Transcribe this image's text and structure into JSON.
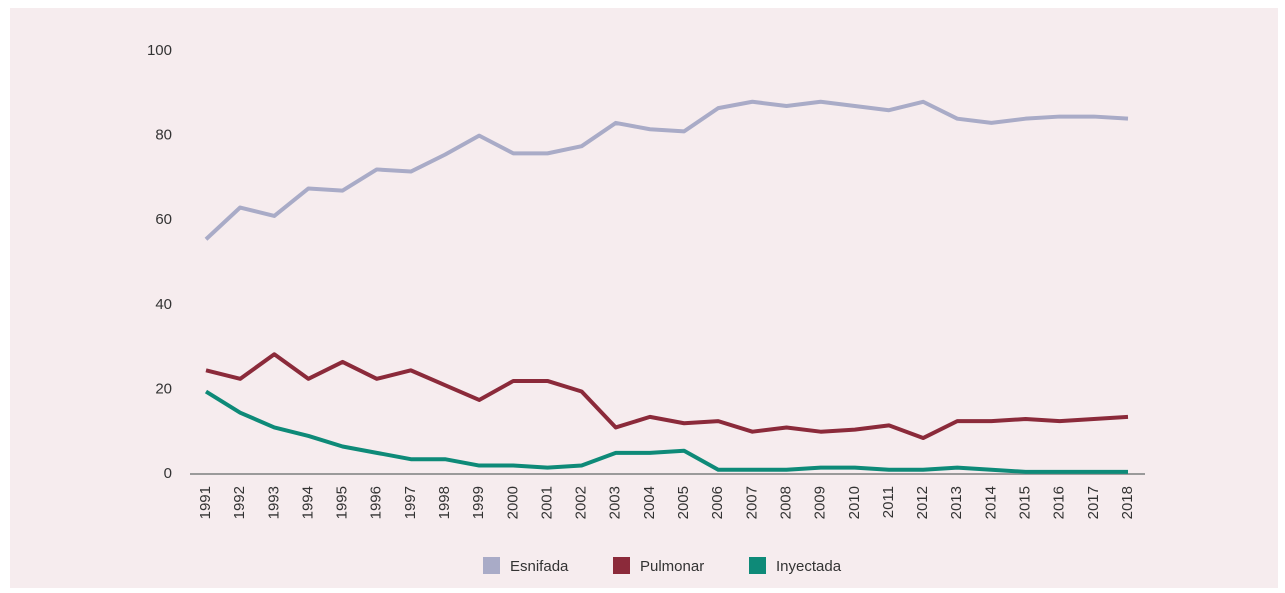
{
  "chart_data": {
    "type": "line",
    "categories": [
      "1991",
      "1992",
      "1993",
      "1994",
      "1995",
      "1996",
      "1997",
      "1998",
      "1999",
      "2000",
      "2001",
      "2002",
      "2003",
      "2004",
      "2005",
      "2006",
      "2007",
      "2008",
      "2009",
      "2010",
      "2011",
      "2012",
      "2013",
      "2014",
      "2015",
      "2016",
      "2017",
      "2018"
    ],
    "series": [
      {
        "name": "Esnifada",
        "color": "#a9abc7",
        "values": [
          55.5,
          63,
          61,
          67.5,
          67,
          72,
          71.5,
          75.5,
          80,
          75.8,
          75.8,
          77.5,
          83,
          81.5,
          81,
          86.5,
          88,
          87,
          88,
          87,
          86,
          88,
          84,
          83,
          84,
          84.5,
          84.5,
          84
        ]
      },
      {
        "name": "Pulmonar",
        "color": "#8b2a3a",
        "values": [
          24.5,
          22.5,
          28.3,
          22.5,
          26.5,
          22.5,
          24.5,
          21,
          17.5,
          22,
          22,
          19.5,
          11,
          13.5,
          12,
          12.5,
          10,
          11,
          10,
          10.5,
          11.5,
          8.5,
          12.5,
          12.5,
          13,
          12.5,
          13,
          13.5
        ]
      },
      {
        "name": "Inyectada",
        "color": "#0e8a78",
        "values": [
          19.5,
          14.5,
          11,
          9,
          6.5,
          5,
          3.5,
          3.5,
          2,
          2,
          1.5,
          2,
          5,
          5,
          5.5,
          1,
          1,
          1,
          1.5,
          1.5,
          1,
          1,
          1.5,
          1,
          0.5,
          0.5,
          0.5,
          0.5
        ]
      }
    ],
    "ylim": [
      0,
      100
    ],
    "yticks": [
      0,
      20,
      40,
      60,
      80,
      100
    ],
    "legend": "bottom"
  }
}
